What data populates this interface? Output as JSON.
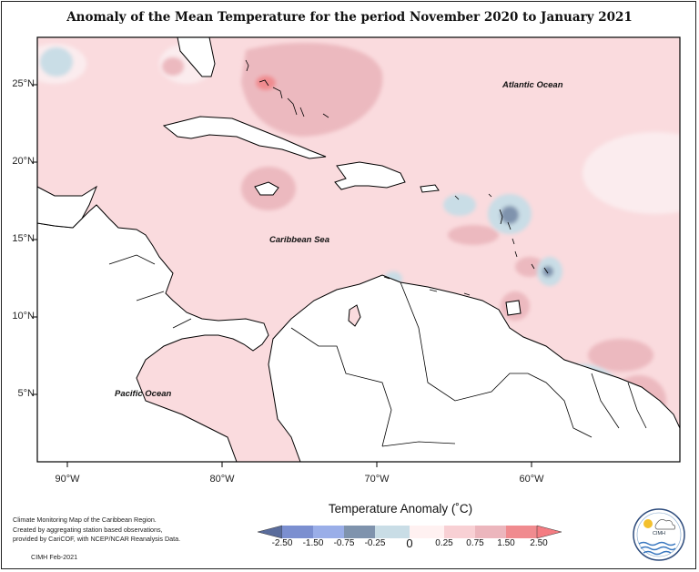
{
  "title": "Anomaly of the Mean Temperature for the period November 2020 to January 2021",
  "map": {
    "ocean_labels": [
      "Atlantic Ocean",
      "Caribbean Sea",
      "Pacific Ocean"
    ],
    "lat_labels": [
      "25°N",
      "20°N",
      "15°N",
      "10°N",
      "5°N"
    ],
    "lon_labels": [
      "90°W",
      "80°W",
      "70°W",
      "60°W"
    ],
    "extent": {
      "lon": [
        -92,
        -50.5
      ],
      "lat": [
        0.5,
        28
      ]
    }
  },
  "legend": {
    "title": "Temperature Anomaly (˚C)",
    "ticks": [
      "-2.50",
      "-1.50",
      "-0.75",
      "-0.25",
      "0",
      "0.25",
      "0.75",
      "1.50",
      "2.50"
    ],
    "colors": [
      "#5a6c9c",
      "#7b8fd0",
      "#9aaee8",
      "#7f93ad",
      "#c9dde6",
      "#fff1f1",
      "#f8d0d4",
      "#ecb6bd",
      "#f08b8f",
      "#f47c82"
    ]
  },
  "credit": {
    "lines": [
      "Climate Monitoring Map of the Caribbean Region.",
      "Created by aggregating station based observations,",
      "provided by CariCOF, with NCEP/NCAR Reanalysis Data."
    ],
    "footer": "CIMH Feb-2021"
  },
  "logo": {
    "text": "CIMH"
  }
}
